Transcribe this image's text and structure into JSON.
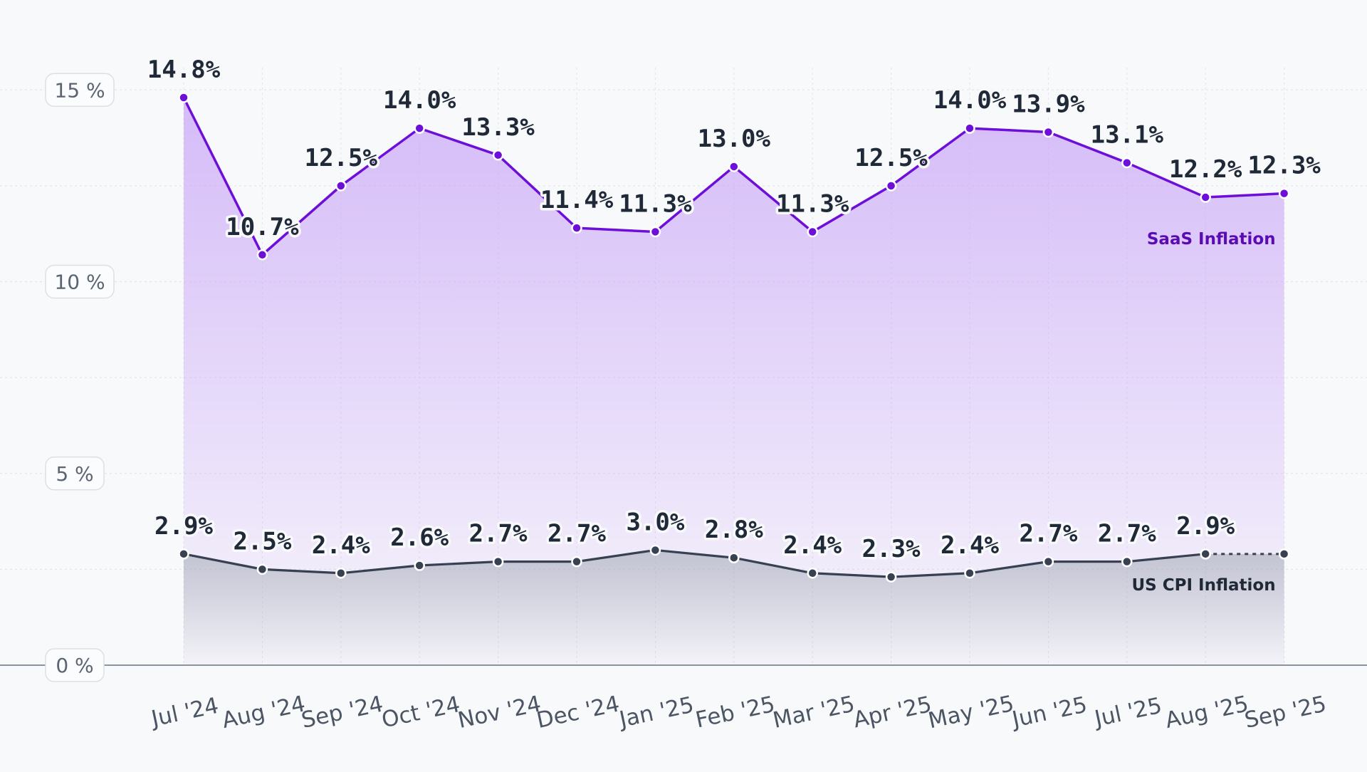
{
  "chart_data": {
    "type": "area",
    "categories": [
      "Jul '24",
      "Aug '24",
      "Sep '24",
      "Oct '24",
      "Nov '24",
      "Dec '24",
      "Jan '25",
      "Feb '25",
      "Mar '25",
      "Apr '25",
      "May '25",
      "Jun '25",
      "Jul '25",
      "Aug '25",
      "Sep '25"
    ],
    "y_ticks": [
      0,
      5,
      10,
      15
    ],
    "y_tick_labels": [
      "0 %",
      "5 %",
      "10 %",
      "15 %"
    ],
    "ylim": [
      0,
      15
    ],
    "grid": true,
    "series": [
      {
        "name": "SaaS Inflation",
        "color": "#6d0fd8",
        "fill_color": "#c9a6f7",
        "values": [
          14.8,
          10.7,
          12.5,
          14.0,
          13.3,
          11.4,
          11.3,
          13.0,
          11.3,
          12.5,
          14.0,
          13.9,
          13.1,
          12.2,
          12.3
        ],
        "labels": [
          "14.8%",
          "10.7%",
          "12.5%",
          "14.0%",
          "13.3%",
          "11.4%",
          "11.3%",
          "13.0%",
          "11.3%",
          "12.5%",
          "14.0%",
          "13.9%",
          "13.1%",
          "12.2%",
          "12.3%"
        ],
        "last_point_labeled": true
      },
      {
        "name": "US CPI Inflation",
        "color": "#374151",
        "fill_color": "#a3a8b2",
        "values": [
          2.9,
          2.5,
          2.4,
          2.6,
          2.7,
          2.7,
          3.0,
          2.8,
          2.4,
          2.3,
          2.4,
          2.7,
          2.7,
          2.9,
          2.9
        ],
        "labels": [
          "2.9%",
          "2.5%",
          "2.4%",
          "2.6%",
          "2.7%",
          "2.7%",
          "3.0%",
          "2.8%",
          "2.4%",
          "2.3%",
          "2.4%",
          "2.7%",
          "2.7%",
          "2.9%",
          ""
        ],
        "last_segment_dashed": true
      }
    ]
  }
}
